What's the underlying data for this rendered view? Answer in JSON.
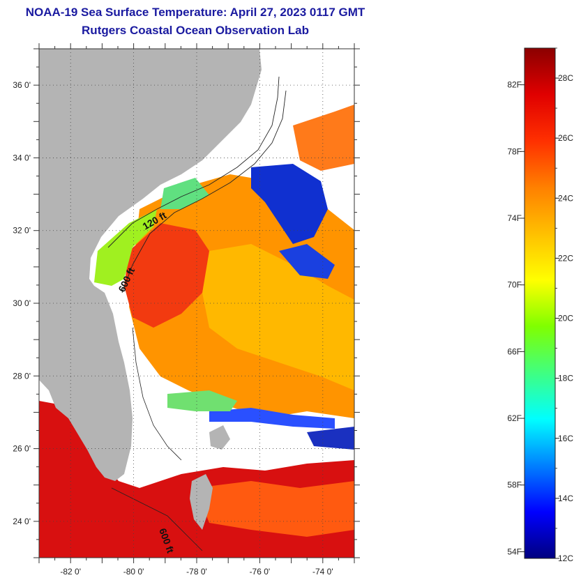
{
  "title": "NOAA-19 Sea Surface Temperature:  April 27, 2023 0117 GMT",
  "subtitle": "Rutgers Coastal Ocean Observation Lab",
  "map": {
    "lon_range": [
      -83,
      -73
    ],
    "lat_range": [
      23,
      37
    ],
    "lat_ticks": [
      {
        "value": 36,
        "label": "36 0'"
      },
      {
        "value": 34,
        "label": "34 0'"
      },
      {
        "value": 32,
        "label": "32 0'"
      },
      {
        "value": 30,
        "label": "30 0'"
      },
      {
        "value": 28,
        "label": "28 0'"
      },
      {
        "value": 26,
        "label": "26 0'"
      },
      {
        "value": 24,
        "label": "24 0'"
      }
    ],
    "lon_ticks": [
      {
        "value": -82,
        "label": "-82 0'"
      },
      {
        "value": -80,
        "label": "-80 0'"
      },
      {
        "value": -78,
        "label": "-78 0'"
      },
      {
        "value": -76,
        "label": "-76 0'"
      },
      {
        "value": -74,
        "label": "-74 0'"
      }
    ],
    "grid": "dotted",
    "land_color": "#b4b4b4",
    "cloud_color": "#ffffff",
    "contour_labels": [
      {
        "text": "120 ft"
      },
      {
        "text": "600 ft"
      },
      {
        "text": "600 ft"
      }
    ]
  },
  "colorbar": {
    "celsius_range": [
      12,
      29
    ],
    "fahrenheit_labels": [
      {
        "value": 82,
        "label": "82F"
      },
      {
        "value": 78,
        "label": "78F"
      },
      {
        "value": 74,
        "label": "74F"
      },
      {
        "value": 70,
        "label": "70F"
      },
      {
        "value": 66,
        "label": "66F"
      },
      {
        "value": 62,
        "label": "62F"
      },
      {
        "value": 58,
        "label": "58F"
      },
      {
        "value": 54,
        "label": "54F"
      }
    ],
    "celsius_labels": [
      {
        "value": 28,
        "label": "28C"
      },
      {
        "value": 26,
        "label": "26C"
      },
      {
        "value": 24,
        "label": "24C"
      },
      {
        "value": 22,
        "label": "22C"
      },
      {
        "value": 20,
        "label": "20C"
      },
      {
        "value": 18,
        "label": "18C"
      },
      {
        "value": 16,
        "label": "16C"
      },
      {
        "value": 14,
        "label": "14C"
      },
      {
        "value": 12,
        "label": "12C"
      }
    ],
    "colors": [
      "#00007f",
      "#0000ff",
      "#0080ff",
      "#00ffff",
      "#40ff80",
      "#80ff00",
      "#ffff00",
      "#ffc000",
      "#ff8000",
      "#ff3000",
      "#e00000",
      "#8b0000"
    ]
  }
}
